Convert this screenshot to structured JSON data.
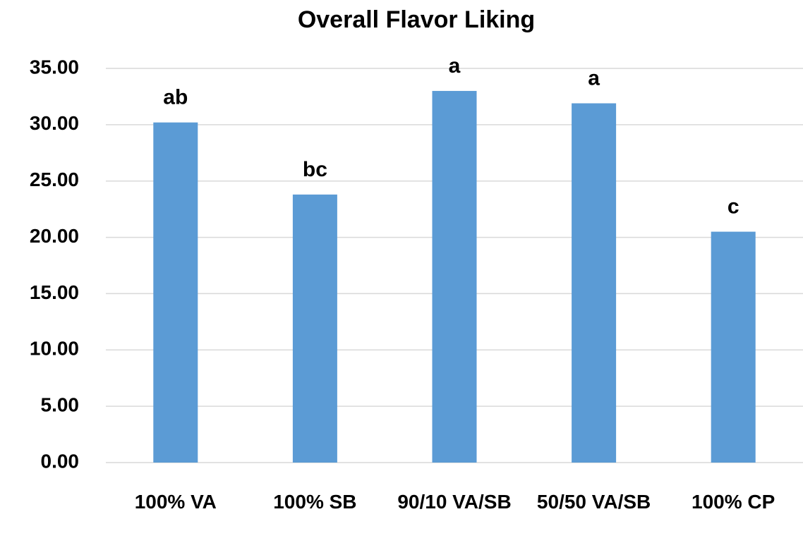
{
  "chart_data": {
    "type": "bar",
    "title": "Overall Flavor Liking",
    "categories": [
      "100% VA",
      "100% SB",
      "90/10 VA/SB",
      "50/50 VA/SB",
      "100% CP"
    ],
    "values": [
      30.2,
      23.8,
      33.0,
      31.9,
      20.5
    ],
    "annotations": [
      "ab",
      "bc",
      "a",
      "a",
      "c"
    ],
    "color": "#5b9bd5",
    "ylim": [
      0,
      35
    ],
    "yticks": [
      {
        "value": 0,
        "label": "0.00"
      },
      {
        "value": 5,
        "label": "5.00"
      },
      {
        "value": 10,
        "label": "10.00"
      },
      {
        "value": 15,
        "label": "15.00"
      },
      {
        "value": 20,
        "label": "20.00"
      },
      {
        "value": 25,
        "label": "25.00"
      },
      {
        "value": 30,
        "label": "30.00"
      },
      {
        "value": 35,
        "label": "35.00"
      }
    ],
    "grid": true
  }
}
